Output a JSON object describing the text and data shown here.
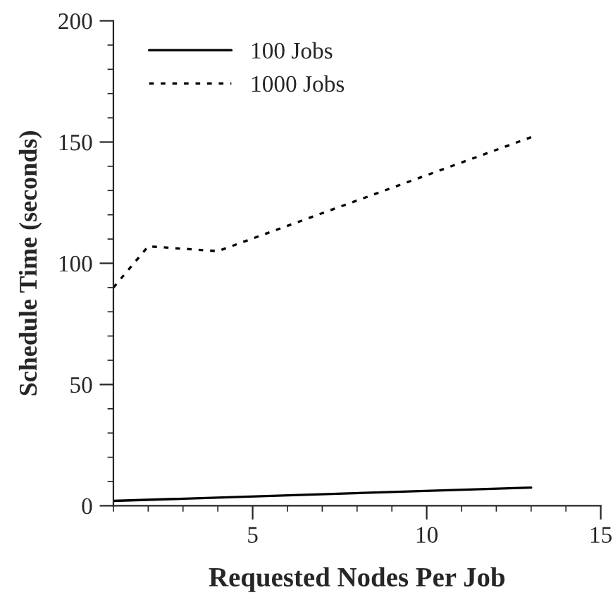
{
  "chart_data": {
    "type": "line",
    "xlabel": "Requested Nodes Per Job",
    "ylabel": "Schedule Time (seconds)",
    "series": [
      {
        "name": "100 Jobs",
        "color": "#000000",
        "line_style": "solid",
        "x": [
          1,
          13
        ],
        "values": [
          2,
          7.5
        ]
      },
      {
        "name": "1000 Jobs",
        "color": "#000000",
        "line_style": "dotted",
        "x": [
          1,
          2,
          4,
          13
        ],
        "values": [
          90,
          107,
          105,
          152
        ]
      }
    ],
    "xlim": [
      1,
      15
    ],
    "xticks": [
      5,
      10,
      15
    ],
    "ylim": [
      0,
      200
    ],
    "yticks": [
      0,
      50,
      100,
      150,
      200
    ],
    "grid": false,
    "legend": "top left",
    "marker": "none"
  }
}
